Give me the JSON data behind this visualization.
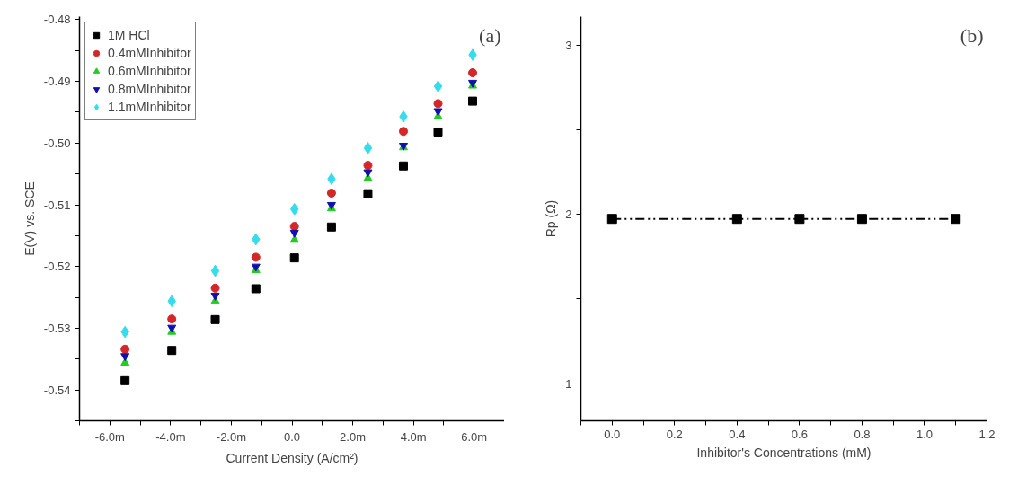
{
  "chart_data": [
    {
      "type": "scatter",
      "xlabel": "Current Density (A/cm²)",
      "ylabel": "E(V) vs. SCE",
      "annotations": [
        "(a)"
      ],
      "x": [
        -5.5,
        -3.96,
        -2.53,
        -1.19,
        0.08,
        1.3,
        2.5,
        3.67,
        4.81,
        5.95
      ],
      "series": [
        {
          "name": "1M HCl",
          "color": "#000000",
          "marker": "square",
          "values": [
            -0.5385,
            -0.5336,
            -0.5286,
            -0.5236,
            -0.5186,
            -0.5136,
            -0.5082,
            -0.5037,
            -0.4982,
            -0.4932
          ]
        },
        {
          "name": "0.4mMInhibitor",
          "color": "#d62728",
          "marker": "circle",
          "values": [
            -0.5334,
            -0.5285,
            -0.5235,
            -0.5185,
            -0.5135,
            -0.5081,
            -0.5036,
            -0.4981,
            -0.4936,
            -0.4886
          ]
        },
        {
          "name": "0.6mMInhibitor",
          "color": "#22cc22",
          "marker": "triangle",
          "values": [
            -0.5356,
            -0.5306,
            -0.5256,
            -0.5206,
            -0.5157,
            -0.5106,
            -0.5057,
            -0.5007,
            -0.4957,
            -0.4907
          ]
        },
        {
          "name": "0.8mMInhibitor",
          "color": "#1010b0",
          "marker": "triangle",
          "values": [
            -0.5345,
            -0.5299,
            -0.5247,
            -0.52,
            -0.5145,
            -0.51,
            -0.5047,
            -0.5004,
            -0.4948,
            -0.4902
          ]
        },
        {
          "name": "1.1mMInhibitor",
          "color": "#33ddee",
          "marker": "diamond",
          "values": [
            -0.5306,
            -0.5256,
            -0.5207,
            -0.5156,
            -0.5107,
            -0.5058,
            -0.5008,
            -0.4957,
            -0.4908,
            -0.4857
          ]
        }
      ],
      "xlim": [
        -7,
        7
      ],
      "ylim": [
        -0.545,
        -0.4795
      ],
      "xticks": [
        {
          "value": -7,
          "label": null
        },
        {
          "value": -6,
          "label": "-6.0m"
        },
        {
          "value": -5,
          "label": null
        },
        {
          "value": -4,
          "label": "-4.0m"
        },
        {
          "value": -3,
          "label": null
        },
        {
          "value": -2,
          "label": "-2.0m"
        },
        {
          "value": -1,
          "label": null
        },
        {
          "value": 0,
          "label": "0.0"
        },
        {
          "value": 1,
          "label": null
        },
        {
          "value": 2,
          "label": "2.0m"
        },
        {
          "value": 3,
          "label": null
        },
        {
          "value": 4,
          "label": "4.0m"
        },
        {
          "value": 5,
          "label": null
        },
        {
          "value": 6,
          "label": "6.0m"
        },
        {
          "value": 7,
          "label": null
        }
      ],
      "yticks": [
        {
          "value": -0.545,
          "label": null
        },
        {
          "value": -0.54,
          "label": "-0.54"
        },
        {
          "value": -0.535,
          "label": null
        },
        {
          "value": -0.53,
          "label": "-0.53"
        },
        {
          "value": -0.525,
          "label": null
        },
        {
          "value": -0.52,
          "label": "-0.52"
        },
        {
          "value": -0.515,
          "label": null
        },
        {
          "value": -0.51,
          "label": "-0.51"
        },
        {
          "value": -0.505,
          "label": null
        },
        {
          "value": -0.5,
          "label": "-0.50"
        },
        {
          "value": -0.495,
          "label": null
        },
        {
          "value": -0.49,
          "label": "-0.49"
        },
        {
          "value": -0.485,
          "label": null
        },
        {
          "value": -0.48,
          "label": "-0.48"
        }
      ],
      "grid": false,
      "legend": "top left"
    },
    {
      "type": "line",
      "xlabel": "Inhibitor's Concentrations (mM)",
      "ylabel": "Rp (Ω)",
      "annotations": [
        "(b)"
      ],
      "x": [
        0,
        0.4,
        0.6,
        0.8,
        1.1
      ],
      "series": [
        {
          "color": "#000000",
          "values": [
            1.974,
            1.974,
            1.974,
            1.974,
            1.974
          ]
        }
      ],
      "marker": "square",
      "line_style": "dashed",
      "xlim": [
        -0.1,
        1.2
      ],
      "ylim": [
        0.78,
        3.17
      ],
      "xticks": [
        {
          "value": -0.1,
          "label": null
        },
        {
          "value": 0,
          "label": "0.0"
        },
        {
          "value": 0.1,
          "label": null
        },
        {
          "value": 0.2,
          "label": "0.2"
        },
        {
          "value": 0.3,
          "label": null
        },
        {
          "value": 0.4,
          "label": "0.4"
        },
        {
          "value": 0.5,
          "label": null
        },
        {
          "value": 0.6,
          "label": "0.6"
        },
        {
          "value": 0.7,
          "label": null
        },
        {
          "value": 0.8,
          "label": "0.8"
        },
        {
          "value": 0.9,
          "label": null
        },
        {
          "value": 1.0,
          "label": "1.0"
        },
        {
          "value": 1.1,
          "label": null
        },
        {
          "value": 1.2,
          "label": "1.2"
        }
      ],
      "yticks": [
        1,
        {
          "value": 1.5,
          "label": null
        },
        2,
        {
          "value": 2.5,
          "label": null
        },
        3
      ],
      "grid": false,
      "legend": false
    }
  ]
}
